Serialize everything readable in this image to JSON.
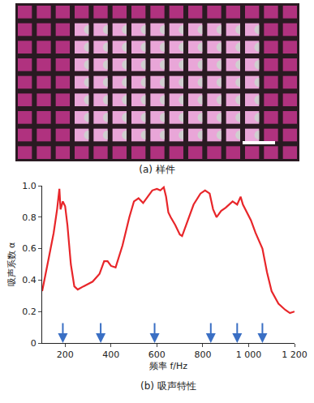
{
  "photo": {
    "caption": "(a) 样件"
  },
  "chart_data": {
    "type": "line",
    "title": "(b) 吸声特性",
    "x_label": "频率 f/Hz",
    "y_label": "吸声系数 α",
    "x": [
      100,
      110,
      130,
      150,
      165,
      175,
      180,
      190,
      200,
      210,
      225,
      240,
      255,
      280,
      320,
      350,
      370,
      385,
      400,
      420,
      450,
      480,
      500,
      520,
      540,
      560,
      580,
      600,
      615,
      630,
      640,
      650,
      660,
      680,
      700,
      710,
      730,
      760,
      790,
      810,
      830,
      845,
      860,
      880,
      900,
      930,
      950,
      965,
      975,
      990,
      1010,
      1030,
      1060,
      1080,
      1100,
      1130,
      1160,
      1180,
      1200
    ],
    "values": [
      0.33,
      0.4,
      0.55,
      0.7,
      0.85,
      0.98,
      0.85,
      0.9,
      0.87,
      0.75,
      0.5,
      0.36,
      0.34,
      0.36,
      0.39,
      0.44,
      0.52,
      0.52,
      0.49,
      0.48,
      0.62,
      0.8,
      0.9,
      0.92,
      0.89,
      0.93,
      0.97,
      0.98,
      0.97,
      0.99,
      0.93,
      0.83,
      0.8,
      0.75,
      0.69,
      0.68,
      0.76,
      0.88,
      0.95,
      0.97,
      0.95,
      0.85,
      0.8,
      0.84,
      0.86,
      0.9,
      0.88,
      0.93,
      0.88,
      0.84,
      0.78,
      0.7,
      0.6,
      0.45,
      0.33,
      0.25,
      0.21,
      0.19,
      0.2
    ],
    "color": "#e8262a",
    "arrows_x": [
      190,
      355,
      590,
      835,
      950,
      1060
    ],
    "arrow_color": "#3a6fc4",
    "xlim": [
      100,
      1200
    ],
    "xticks": [
      200,
      400,
      600,
      800,
      {
        "value": 1000,
        "label": "1 000"
      },
      {
        "value": 1200,
        "label": "1 200"
      }
    ],
    "ylim": [
      0,
      1.0
    ],
    "yticks": [
      0,
      0.2,
      0.4,
      0.6,
      0.8,
      {
        "value": 1.0,
        "label": "1.0"
      }
    ],
    "grid": false
  }
}
